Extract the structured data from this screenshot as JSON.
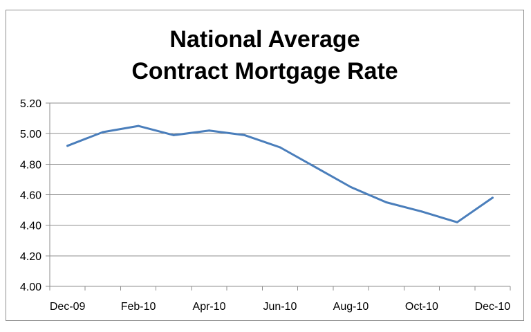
{
  "chart_data": {
    "type": "line",
    "title_lines": [
      "National Average",
      "Contract Mortgage Rate"
    ],
    "xlabel": "",
    "ylabel": "",
    "x": [
      "Dec-09",
      "Jan-10",
      "Feb-10",
      "Mar-10",
      "Apr-10",
      "May-10",
      "Jun-10",
      "Jul-10",
      "Aug-10",
      "Sep-10",
      "Oct-10",
      "Nov-10",
      "Dec-10"
    ],
    "x_tick_labels": [
      "Dec-09",
      "Feb-10",
      "Apr-10",
      "Jun-10",
      "Aug-10",
      "Oct-10",
      "Dec-10"
    ],
    "series": [
      {
        "values": [
          4.92,
          5.01,
          5.05,
          4.99,
          5.02,
          4.99,
          4.91,
          4.78,
          4.65,
          4.55,
          4.49,
          4.42,
          4.58
        ],
        "color": "#4a7ebb"
      }
    ],
    "ylim": [
      4.0,
      5.2
    ],
    "y_ticks": [
      "4.00",
      "4.20",
      "4.40",
      "4.60",
      "4.80",
      "5.00",
      "5.20"
    ],
    "grid": "horizontal",
    "legend": "none"
  }
}
